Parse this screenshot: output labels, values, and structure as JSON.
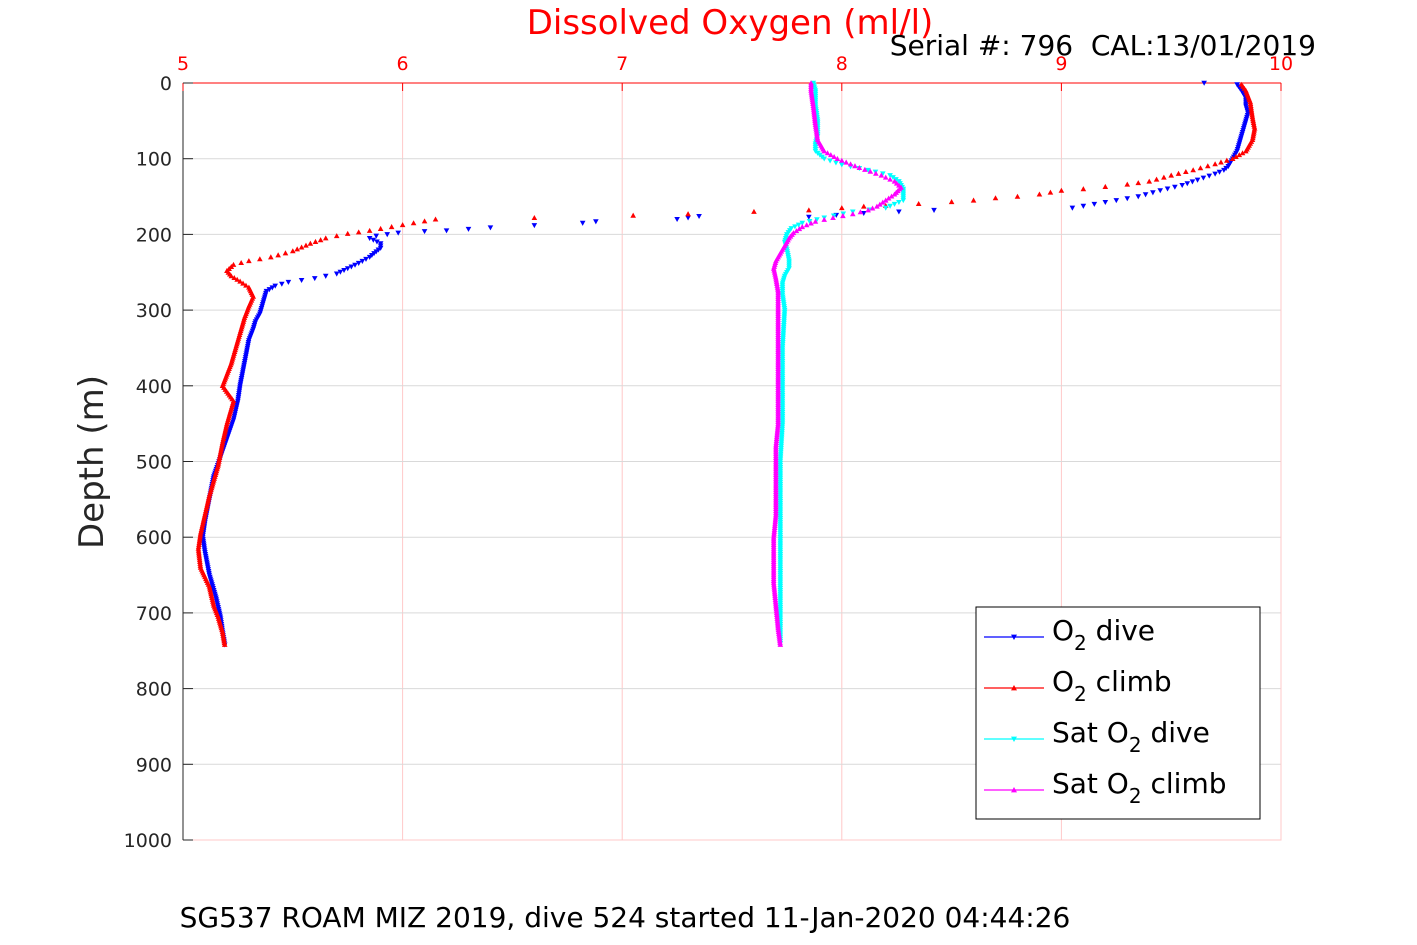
{
  "chart_data": {
    "type": "scatter",
    "title": "Dissolved Oxygen (ml/l)",
    "annotation": "Serial #: 796  CAL:13/01/2019",
    "footer": "SG537 ROAM MIZ 2019, dive 524 started 11-Jan-2020 04:44:26",
    "ylabel": "Depth (m)",
    "xlim": [
      5,
      10
    ],
    "ylim": [
      0,
      1000
    ],
    "y_reversed": true,
    "x_axis_position": "top",
    "xticks": [
      "5",
      "6",
      "7",
      "8",
      "9",
      "10"
    ],
    "yticks": [
      "0",
      "100",
      "200",
      "300",
      "400",
      "500",
      "600",
      "700",
      "800",
      "900",
      "1000"
    ],
    "grid": true,
    "legend_position": "bottom-right",
    "colors": {
      "axis_x": "#ff0000",
      "grid": "#ffc8c8"
    },
    "legend": [
      {
        "prefix": "O",
        "sub": "2",
        "suffix": " dive",
        "color": "#0000ff",
        "marker": "triangle-down"
      },
      {
        "prefix": "O",
        "sub": "2",
        "suffix": " climb",
        "color": "#ff0000",
        "marker": "triangle-up"
      },
      {
        "prefix": "Sat O",
        "sub": "2",
        "suffix": " dive",
        "color": "#00ffff",
        "marker": "triangle-down"
      },
      {
        "prefix": "Sat O",
        "sub": "2",
        "suffix": " climb",
        "color": "#ff00ff",
        "marker": "triangle-up"
      }
    ],
    "series": [
      {
        "name": "O2 dive",
        "color": "#0000ff",
        "marker": "triangle-down",
        "points": [
          [
            9.65,
            0
          ],
          [
            9.8,
            2
          ],
          [
            9.82,
            10
          ],
          [
            9.84,
            20
          ],
          [
            9.84,
            30
          ],
          [
            9.85,
            40
          ],
          [
            9.84,
            50
          ],
          [
            9.83,
            60
          ],
          [
            9.82,
            70
          ],
          [
            9.81,
            80
          ],
          [
            9.8,
            90
          ],
          [
            9.78,
            100
          ],
          [
            9.76,
            110
          ],
          [
            9.74,
            115
          ],
          [
            9.7,
            120
          ],
          [
            9.62,
            128
          ],
          [
            9.55,
            135
          ],
          [
            9.45,
            142
          ],
          [
            9.35,
            150
          ],
          [
            9.25,
            155
          ],
          [
            9.15,
            160
          ],
          [
            9.05,
            165
          ],
          [
            8.42,
            168
          ],
          [
            8.1,
            172
          ],
          [
            7.85,
            177
          ],
          [
            7.35,
            176
          ],
          [
            7.25,
            180
          ],
          [
            6.88,
            183
          ],
          [
            6.82,
            185
          ],
          [
            6.6,
            188
          ],
          [
            6.4,
            191
          ],
          [
            6.2,
            195
          ],
          [
            6.1,
            196
          ],
          [
            5.98,
            198
          ],
          [
            5.88,
            202
          ],
          [
            5.85,
            205
          ],
          [
            5.9,
            212
          ],
          [
            5.9,
            218
          ],
          [
            5.87,
            225
          ],
          [
            5.85,
            230
          ],
          [
            5.8,
            238
          ],
          [
            5.75,
            245
          ],
          [
            5.7,
            252
          ],
          [
            5.6,
            258
          ],
          [
            5.48,
            263
          ],
          [
            5.42,
            268
          ],
          [
            5.38,
            275
          ],
          [
            5.37,
            285
          ],
          [
            5.36,
            295
          ],
          [
            5.35,
            305
          ],
          [
            5.33,
            315
          ],
          [
            5.32,
            325
          ],
          [
            5.3,
            340
          ],
          [
            5.29,
            355
          ],
          [
            5.28,
            370
          ],
          [
            5.27,
            385
          ],
          [
            5.26,
            400
          ],
          [
            5.25,
            420
          ],
          [
            5.23,
            445
          ],
          [
            5.2,
            470
          ],
          [
            5.17,
            495
          ],
          [
            5.14,
            520
          ],
          [
            5.12,
            550
          ],
          [
            5.1,
            580
          ],
          [
            5.09,
            600
          ],
          [
            5.1,
            620
          ],
          [
            5.12,
            650
          ],
          [
            5.15,
            680
          ],
          [
            5.17,
            705
          ],
          [
            5.18,
            725
          ],
          [
            5.19,
            742
          ]
        ]
      },
      {
        "name": "O2 climb",
        "color": "#ff0000",
        "marker": "triangle-up",
        "points": [
          [
            5.19,
            742
          ],
          [
            5.18,
            725
          ],
          [
            5.16,
            705
          ],
          [
            5.14,
            690
          ],
          [
            5.12,
            665
          ],
          [
            5.08,
            640
          ],
          [
            5.07,
            615
          ],
          [
            5.08,
            595
          ],
          [
            5.1,
            570
          ],
          [
            5.12,
            545
          ],
          [
            5.14,
            525
          ],
          [
            5.16,
            505
          ],
          [
            5.18,
            475
          ],
          [
            5.2,
            450
          ],
          [
            5.23,
            420
          ],
          [
            5.18,
            400
          ],
          [
            5.2,
            385
          ],
          [
            5.22,
            370
          ],
          [
            5.24,
            350
          ],
          [
            5.26,
            330
          ],
          [
            5.28,
            310
          ],
          [
            5.3,
            295
          ],
          [
            5.32,
            282
          ],
          [
            5.3,
            270
          ],
          [
            5.26,
            262
          ],
          [
            5.22,
            255
          ],
          [
            5.2,
            248
          ],
          [
            5.23,
            240
          ],
          [
            5.3,
            235
          ],
          [
            5.4,
            230
          ],
          [
            5.5,
            222
          ],
          [
            5.58,
            212
          ],
          [
            5.65,
            205
          ],
          [
            5.75,
            199
          ],
          [
            5.85,
            195
          ],
          [
            5.95,
            190
          ],
          [
            6.05,
            185
          ],
          [
            6.15,
            180
          ],
          [
            6.6,
            178
          ],
          [
            7.05,
            175
          ],
          [
            7.3,
            173
          ],
          [
            7.6,
            170
          ],
          [
            7.85,
            168
          ],
          [
            8.0,
            165
          ],
          [
            8.1,
            163
          ],
          [
            8.2,
            162
          ],
          [
            8.5,
            157
          ],
          [
            8.6,
            155
          ],
          [
            8.7,
            152
          ],
          [
            8.8,
            150
          ],
          [
            8.9,
            147
          ],
          [
            9.0,
            142
          ],
          [
            9.1,
            140
          ],
          [
            9.2,
            137
          ],
          [
            9.3,
            134
          ],
          [
            9.4,
            130
          ],
          [
            9.5,
            122
          ],
          [
            9.6,
            115
          ],
          [
            9.7,
            107
          ],
          [
            9.78,
            100
          ],
          [
            9.84,
            90
          ],
          [
            9.87,
            75
          ],
          [
            9.88,
            60
          ],
          [
            9.87,
            45
          ],
          [
            9.86,
            25
          ],
          [
            9.84,
            10
          ],
          [
            9.82,
            2
          ]
        ]
      },
      {
        "name": "Sat O2 dive",
        "color": "#00ffff",
        "marker": "triangle-down",
        "points": [
          [
            7.87,
            0
          ],
          [
            7.88,
            10
          ],
          [
            7.88,
            30
          ],
          [
            7.89,
            50
          ],
          [
            7.89,
            70
          ],
          [
            7.88,
            80
          ],
          [
            7.88,
            90
          ],
          [
            7.92,
            100
          ],
          [
            8.0,
            108
          ],
          [
            8.12,
            115
          ],
          [
            8.22,
            122
          ],
          [
            8.26,
            130
          ],
          [
            8.28,
            140
          ],
          [
            8.28,
            155
          ],
          [
            8.2,
            165
          ],
          [
            8.05,
            170
          ],
          [
            7.92,
            178
          ],
          [
            7.82,
            185
          ],
          [
            7.77,
            192
          ],
          [
            7.75,
            200
          ],
          [
            7.74,
            210
          ],
          [
            7.75,
            220
          ],
          [
            7.76,
            235
          ],
          [
            7.76,
            245
          ],
          [
            7.74,
            255
          ],
          [
            7.73,
            265
          ],
          [
            7.73,
            280
          ],
          [
            7.74,
            300
          ],
          [
            7.73,
            350
          ],
          [
            7.73,
            400
          ],
          [
            7.73,
            450
          ],
          [
            7.72,
            500
          ],
          [
            7.72,
            550
          ],
          [
            7.72,
            600
          ],
          [
            7.72,
            650
          ],
          [
            7.72,
            700
          ],
          [
            7.72,
            740
          ]
        ]
      },
      {
        "name": "Sat O2 climb",
        "color": "#ff00ff",
        "marker": "triangle-up",
        "points": [
          [
            7.72,
            742
          ],
          [
            7.71,
            720
          ],
          [
            7.7,
            690
          ],
          [
            7.69,
            660
          ],
          [
            7.69,
            630
          ],
          [
            7.69,
            600
          ],
          [
            7.7,
            570
          ],
          [
            7.7,
            540
          ],
          [
            7.7,
            510
          ],
          [
            7.7,
            480
          ],
          [
            7.71,
            450
          ],
          [
            7.71,
            420
          ],
          [
            7.71,
            390
          ],
          [
            7.71,
            360
          ],
          [
            7.71,
            330
          ],
          [
            7.71,
            300
          ],
          [
            7.71,
            275
          ],
          [
            7.7,
            258
          ],
          [
            7.69,
            245
          ],
          [
            7.7,
            235
          ],
          [
            7.72,
            225
          ],
          [
            7.74,
            215
          ],
          [
            7.76,
            205
          ],
          [
            7.78,
            198
          ],
          [
            7.82,
            190
          ],
          [
            7.88,
            183
          ],
          [
            7.96,
            178
          ],
          [
            8.05,
            173
          ],
          [
            8.12,
            168
          ],
          [
            8.16,
            163
          ],
          [
            8.2,
            155
          ],
          [
            8.24,
            147
          ],
          [
            8.27,
            138
          ],
          [
            8.24,
            130
          ],
          [
            8.18,
            122
          ],
          [
            8.08,
            112
          ],
          [
            7.98,
            100
          ],
          [
            7.92,
            90
          ],
          [
            7.89,
            75
          ],
          [
            7.88,
            55
          ],
          [
            7.87,
            30
          ],
          [
            7.86,
            10
          ],
          [
            7.86,
            0
          ]
        ]
      }
    ]
  }
}
